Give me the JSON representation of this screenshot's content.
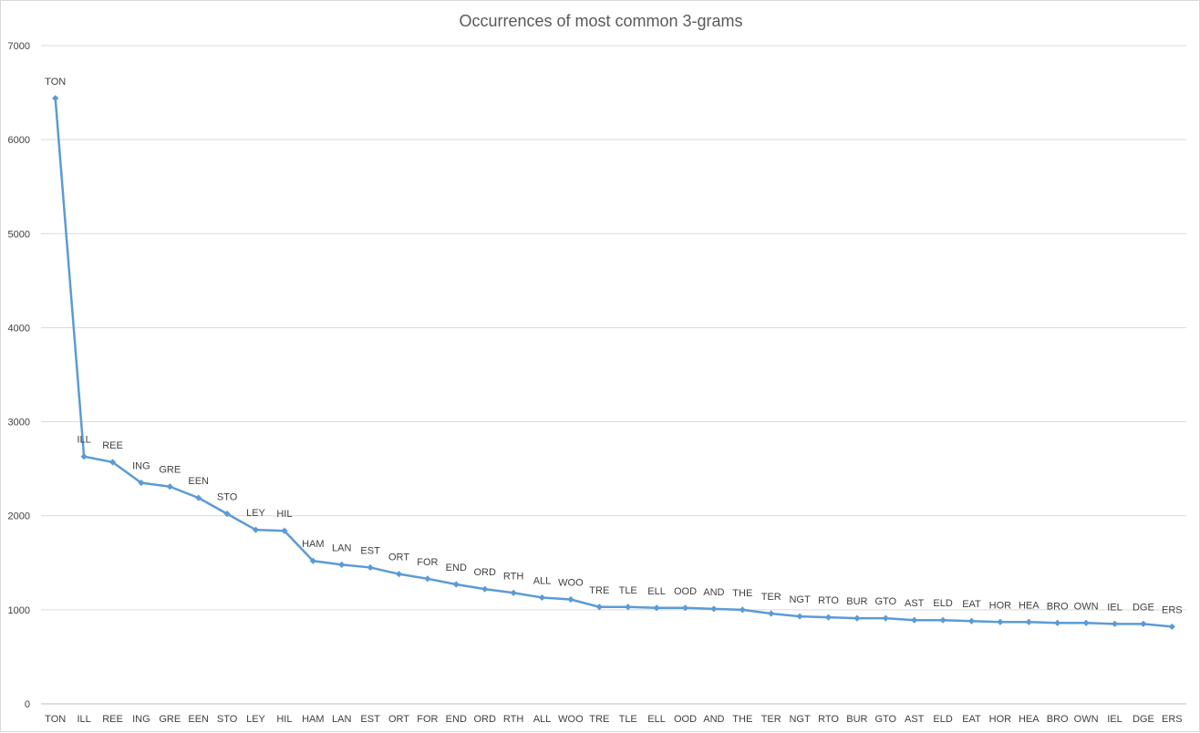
{
  "chart_data": {
    "type": "line",
    "title": "Occurrences of most common 3-grams",
    "xlabel": "",
    "ylabel": "",
    "ylim": [
      0,
      7000
    ],
    "yticks": [
      0,
      1000,
      2000,
      3000,
      4000,
      5000,
      6000,
      7000
    ],
    "grid": true,
    "legend": "none",
    "categories": [
      "TON",
      "ILL",
      "REE",
      "ING",
      "GRE",
      "EEN",
      "STO",
      "LEY",
      "HIL",
      "HAM",
      "LAN",
      "EST",
      "ORT",
      "FOR",
      "END",
      "ORD",
      "RTH",
      "ALL",
      "WOO",
      "TRE",
      "TLE",
      "ELL",
      "OOD",
      "AND",
      "THE",
      "TER",
      "NGT",
      "RTO",
      "BUR",
      "GTO",
      "AST",
      "ELD",
      "EAT",
      "HOR",
      "HEA",
      "BRO",
      "OWN",
      "IEL",
      "DGE",
      "ERS"
    ],
    "series": [
      {
        "values": [
          6440,
          2630,
          2570,
          2350,
          2310,
          2190,
          2020,
          1850,
          1840,
          1520,
          1480,
          1450,
          1380,
          1330,
          1270,
          1220,
          1180,
          1130,
          1110,
          1030,
          1030,
          1020,
          1020,
          1010,
          1000,
          960,
          930,
          920,
          910,
          910,
          890,
          890,
          880,
          870,
          870,
          860,
          860,
          850,
          850,
          820
        ],
        "color": "#5b9bd5"
      }
    ]
  }
}
